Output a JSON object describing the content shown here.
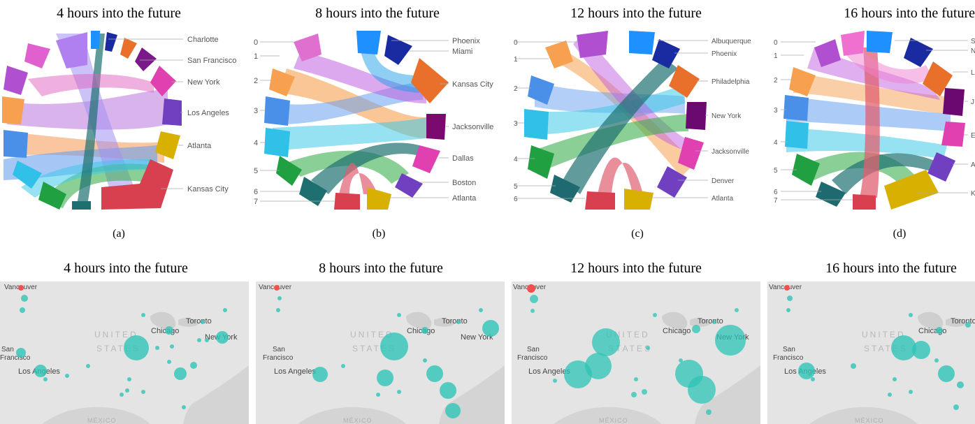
{
  "chords": [
    {
      "title": "4 hours into the future",
      "caption": "(a)",
      "left_labels": [],
      "right_labels": [
        "Charlotte",
        "San Francisco",
        "New York",
        "Los Angeles",
        "Atlanta",
        "Kansas City"
      ]
    },
    {
      "title": "8 hours into the future",
      "caption": "(b)",
      "left_labels": [
        "0",
        "1",
        "2",
        "3",
        "4",
        "5",
        "6",
        "7"
      ],
      "right_labels": [
        "Phoenix",
        "Miami",
        "Kansas City",
        "Jacksonville",
        "Dallas",
        "Boston",
        "Atlanta"
      ]
    },
    {
      "title": "12 hours into the future",
      "caption": "(c)",
      "left_labels": [
        "0",
        "1",
        "2",
        "3",
        "4",
        "5",
        "6"
      ],
      "right_labels": [
        "Albuquerque",
        "Phoenix",
        "Philadelphia",
        "New York",
        "Jacksonville",
        "Denver",
        "Atlanta"
      ]
    },
    {
      "title": "16 hours into the future",
      "caption": "(d)",
      "left_labels": [
        "0",
        "1",
        "2",
        "3",
        "4",
        "5",
        "6",
        "7"
      ],
      "right_labels": [
        "S",
        "N",
        "L",
        "J",
        "E",
        "A",
        "K"
      ]
    }
  ],
  "maps": [
    {
      "title": "4 hours into the future"
    },
    {
      "title": "8 hours into the future"
    },
    {
      "title": "12 hours into the future"
    },
    {
      "title": "16 hours into the future"
    }
  ],
  "map_labels": {
    "vancouver": "Vancouver",
    "san": "San",
    "francisco": "Francisco",
    "los_angeles": "Los Angeles",
    "chicago": "Chicago",
    "toronto": "Toronto",
    "new_york": "New York",
    "united": "UNITED",
    "states": "STATES",
    "mexico": "MÉXICO"
  },
  "colors": {
    "teal": "#2ec4b6",
    "red_marker": "#f05050",
    "map_bg": "#dcdcdc",
    "map_land": "#e6e6e6",
    "map_water": "#d2d2d2"
  }
}
